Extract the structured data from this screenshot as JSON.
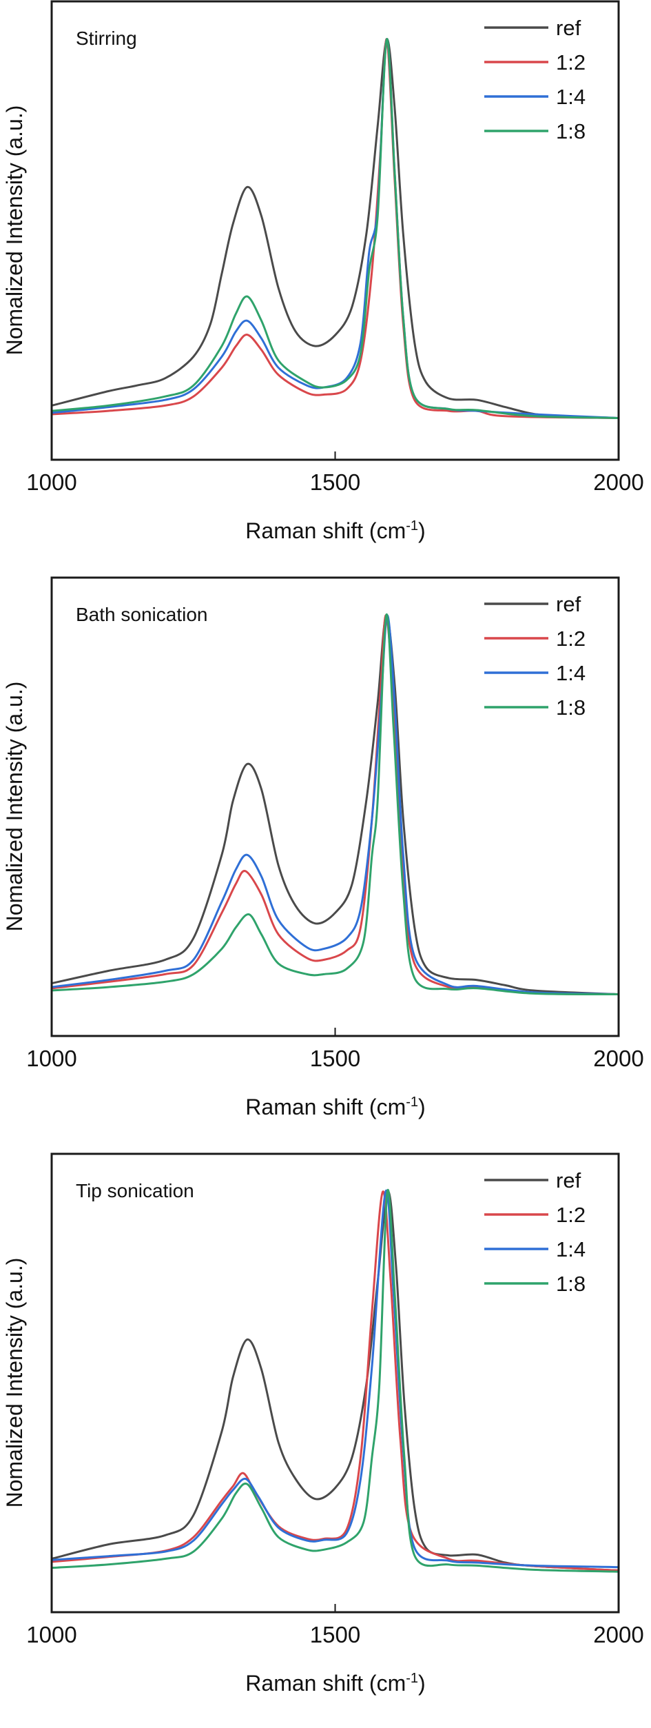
{
  "chart_data": [
    {
      "type": "line",
      "title": "Stirring",
      "xlabel": "Raman shift (cm",
      "xlabel_sup": "-1",
      "xlabel_end": ")",
      "ylabel": "Nomalized Intensity (a.u.)",
      "xlim": [
        1000,
        2000
      ],
      "ylim": [
        -0.11,
        1.1
      ],
      "xticks": [
        1000,
        1500,
        2000
      ],
      "xtick_labels": [
        "1000",
        "1500",
        "2000"
      ],
      "yticks": [],
      "grid": false,
      "legend_position": "top-right",
      "series": [
        {
          "name": "ref",
          "color": "#4a4a4a",
          "x": [
            1000,
            1100,
            1150,
            1200,
            1250,
            1280,
            1300,
            1320,
            1345,
            1370,
            1400,
            1430,
            1465,
            1500,
            1530,
            1555,
            1575,
            1591,
            1605,
            1620,
            1640,
            1660,
            1700,
            1750,
            1800,
            1850,
            1900,
            2000
          ],
          "y": [
            0.033,
            0.071,
            0.086,
            0.105,
            0.162,
            0.248,
            0.381,
            0.514,
            0.61,
            0.533,
            0.343,
            0.229,
            0.19,
            0.219,
            0.295,
            0.486,
            0.771,
            1.0,
            0.819,
            0.486,
            0.2,
            0.095,
            0.052,
            0.048,
            0.029,
            0.011,
            0.005,
            0.0
          ]
        },
        {
          "name": "1:2",
          "color": "#d9474b",
          "x": [
            1000,
            1100,
            1200,
            1250,
            1300,
            1325,
            1345,
            1370,
            1400,
            1450,
            1480,
            1520,
            1545,
            1565,
            1580,
            1591,
            1605,
            1620,
            1640,
            1700,
            1750,
            1800,
            2000
          ],
          "y": [
            0.01,
            0.019,
            0.033,
            0.057,
            0.133,
            0.19,
            0.22,
            0.18,
            0.114,
            0.067,
            0.062,
            0.076,
            0.152,
            0.39,
            0.705,
            1.0,
            0.629,
            0.248,
            0.048,
            0.019,
            0.019,
            0.005,
            0.0
          ]
        },
        {
          "name": "1:4",
          "color": "#2f6fd6",
          "x": [
            1000,
            1100,
            1200,
            1250,
            1300,
            1325,
            1345,
            1370,
            1400,
            1450,
            1480,
            1520,
            1545,
            1560,
            1575,
            1591,
            1605,
            1620,
            1640,
            1700,
            1750,
            1850,
            2000
          ],
          "y": [
            0.014,
            0.029,
            0.048,
            0.076,
            0.162,
            0.229,
            0.257,
            0.21,
            0.133,
            0.086,
            0.081,
            0.105,
            0.2,
            0.438,
            0.552,
            1.0,
            0.648,
            0.267,
            0.057,
            0.024,
            0.019,
            0.01,
            0.0
          ]
        },
        {
          "name": "1:8",
          "color": "#2fa36b",
          "x": [
            1000,
            1100,
            1200,
            1250,
            1300,
            1325,
            1345,
            1370,
            1400,
            1450,
            1480,
            1520,
            1545,
            1560,
            1575,
            1591,
            1605,
            1620,
            1640,
            1700,
            1750,
            1850,
            2000
          ],
          "y": [
            0.019,
            0.033,
            0.057,
            0.086,
            0.19,
            0.276,
            0.321,
            0.257,
            0.152,
            0.095,
            0.081,
            0.1,
            0.171,
            0.39,
            0.533,
            1.0,
            0.648,
            0.267,
            0.057,
            0.024,
            0.021,
            0.005,
            0.0
          ]
        }
      ]
    },
    {
      "type": "line",
      "title": "Bath sonication",
      "xlabel": "Raman shift (cm",
      "xlabel_sup": "-1",
      "xlabel_end": ")",
      "ylabel": "Nomalized Intensity (a.u.)",
      "xlim": [
        1000,
        2000
      ],
      "ylim": [
        -0.11,
        1.1
      ],
      "xticks": [
        1000,
        1500,
        2000
      ],
      "xtick_labels": [
        "1000",
        "1500",
        "2000"
      ],
      "yticks": [],
      "grid": false,
      "legend_position": "top-right",
      "series": [
        {
          "name": "ref",
          "color": "#4a4a4a",
          "x": [
            1000,
            1100,
            1200,
            1250,
            1300,
            1320,
            1345,
            1370,
            1400,
            1430,
            1465,
            1500,
            1530,
            1555,
            1575,
            1590,
            1605,
            1620,
            1640,
            1660,
            1700,
            1750,
            1800,
            1850,
            2000
          ],
          "y": [
            0.029,
            0.062,
            0.091,
            0.148,
            0.368,
            0.512,
            0.608,
            0.541,
            0.34,
            0.234,
            0.187,
            0.215,
            0.292,
            0.512,
            0.77,
            1.0,
            0.818,
            0.464,
            0.177,
            0.072,
            0.043,
            0.038,
            0.024,
            0.01,
            0.0
          ]
        },
        {
          "name": "1:2",
          "color": "#d9474b",
          "x": [
            1000,
            1100,
            1200,
            1250,
            1300,
            1325,
            1342,
            1370,
            1400,
            1450,
            1480,
            1520,
            1545,
            1565,
            1580,
            1590,
            1605,
            1620,
            1640,
            1700,
            1750,
            1850,
            2000
          ],
          "y": [
            0.016,
            0.033,
            0.053,
            0.077,
            0.215,
            0.292,
            0.325,
            0.263,
            0.158,
            0.096,
            0.091,
            0.115,
            0.177,
            0.464,
            0.799,
            1.0,
            0.732,
            0.321,
            0.081,
            0.019,
            0.019,
            0.003,
            0.0
          ]
        },
        {
          "name": "1:4",
          "color": "#2f6fd6",
          "x": [
            1000,
            1100,
            1200,
            1250,
            1300,
            1325,
            1345,
            1370,
            1400,
            1450,
            1480,
            1520,
            1545,
            1565,
            1580,
            1592,
            1605,
            1620,
            1640,
            1700,
            1750,
            1850,
            2000
          ],
          "y": [
            0.019,
            0.038,
            0.062,
            0.091,
            0.244,
            0.33,
            0.368,
            0.311,
            0.196,
            0.124,
            0.12,
            0.148,
            0.225,
            0.464,
            0.751,
            1.0,
            0.77,
            0.368,
            0.1,
            0.024,
            0.022,
            0.005,
            0.0
          ]
        },
        {
          "name": "1:8",
          "color": "#2fa36b",
          "x": [
            1000,
            1100,
            1200,
            1250,
            1300,
            1325,
            1348,
            1370,
            1400,
            1450,
            1480,
            1520,
            1550,
            1565,
            1575,
            1590,
            1603,
            1620,
            1640,
            1700,
            1750,
            1850,
            2000
          ],
          "y": [
            0.01,
            0.019,
            0.033,
            0.053,
            0.12,
            0.177,
            0.211,
            0.158,
            0.081,
            0.053,
            0.053,
            0.067,
            0.139,
            0.368,
            0.512,
            1.0,
            0.703,
            0.273,
            0.043,
            0.014,
            0.016,
            0.002,
            0.0
          ]
        }
      ]
    },
    {
      "type": "line",
      "title": "Tip sonication",
      "xlabel": "Raman shift (cm",
      "xlabel_sup": "-1",
      "xlabel_end": ")",
      "ylabel": "Nomalized Intensity (a.u.)",
      "xlim": [
        1000,
        2000
      ],
      "ylim": [
        -0.11,
        1.1
      ],
      "xticks": [
        1000,
        1500,
        2000
      ],
      "xtick_labels": [
        "1000",
        "1500",
        "2000"
      ],
      "yticks": [],
      "grid": false,
      "legend_position": "top-right",
      "series": [
        {
          "name": "ref",
          "color": "#4a4a4a",
          "x": [
            1000,
            1100,
            1200,
            1250,
            1300,
            1320,
            1345,
            1370,
            1400,
            1430,
            1465,
            1500,
            1530,
            1555,
            1575,
            1593,
            1607,
            1622,
            1640,
            1660,
            1700,
            1750,
            1800,
            1850,
            2000
          ],
          "y": [
            0.031,
            0.069,
            0.093,
            0.146,
            0.367,
            0.512,
            0.61,
            0.531,
            0.338,
            0.242,
            0.189,
            0.218,
            0.3,
            0.492,
            0.762,
            1.0,
            0.81,
            0.444,
            0.165,
            0.06,
            0.04,
            0.042,
            0.021,
            0.012,
            0.0
          ]
        },
        {
          "name": "1:2",
          "color": "#d9474b",
          "x": [
            1000,
            1100,
            1200,
            1250,
            1300,
            1320,
            1338,
            1360,
            1400,
            1450,
            1480,
            1520,
            1545,
            1565,
            1584,
            1598,
            1615,
            1635,
            1700,
            1750,
            1850,
            2000
          ],
          "y": [
            0.023,
            0.036,
            0.052,
            0.088,
            0.185,
            0.223,
            0.257,
            0.204,
            0.117,
            0.084,
            0.084,
            0.108,
            0.3,
            0.685,
            1.0,
            0.762,
            0.348,
            0.098,
            0.031,
            0.026,
            0.012,
            0.0
          ]
        },
        {
          "name": "1:4",
          "color": "#2f6fd6",
          "x": [
            1000,
            1100,
            1200,
            1250,
            1300,
            1320,
            1342,
            1365,
            1400,
            1450,
            1480,
            1520,
            1545,
            1565,
            1589,
            1603,
            1620,
            1640,
            1700,
            1750,
            1850,
            2000
          ],
          "y": [
            0.028,
            0.038,
            0.05,
            0.079,
            0.175,
            0.213,
            0.242,
            0.194,
            0.113,
            0.079,
            0.081,
            0.098,
            0.242,
            0.54,
            1.0,
            0.733,
            0.319,
            0.06,
            0.026,
            0.021,
            0.013,
            0.009
          ]
        },
        {
          "name": "1:8",
          "color": "#2fa36b",
          "x": [
            1000,
            1100,
            1200,
            1250,
            1300,
            1325,
            1345,
            1370,
            1400,
            1450,
            1480,
            1520,
            1550,
            1565,
            1578,
            1592,
            1605,
            1622,
            1640,
            1700,
            1750,
            1850,
            2000
          ],
          "y": [
            0.007,
            0.016,
            0.031,
            0.05,
            0.137,
            0.204,
            0.228,
            0.165,
            0.088,
            0.055,
            0.055,
            0.074,
            0.127,
            0.3,
            0.492,
            1.0,
            0.733,
            0.3,
            0.04,
            0.016,
            0.013,
            0.002,
            -0.003
          ]
        }
      ]
    }
  ]
}
